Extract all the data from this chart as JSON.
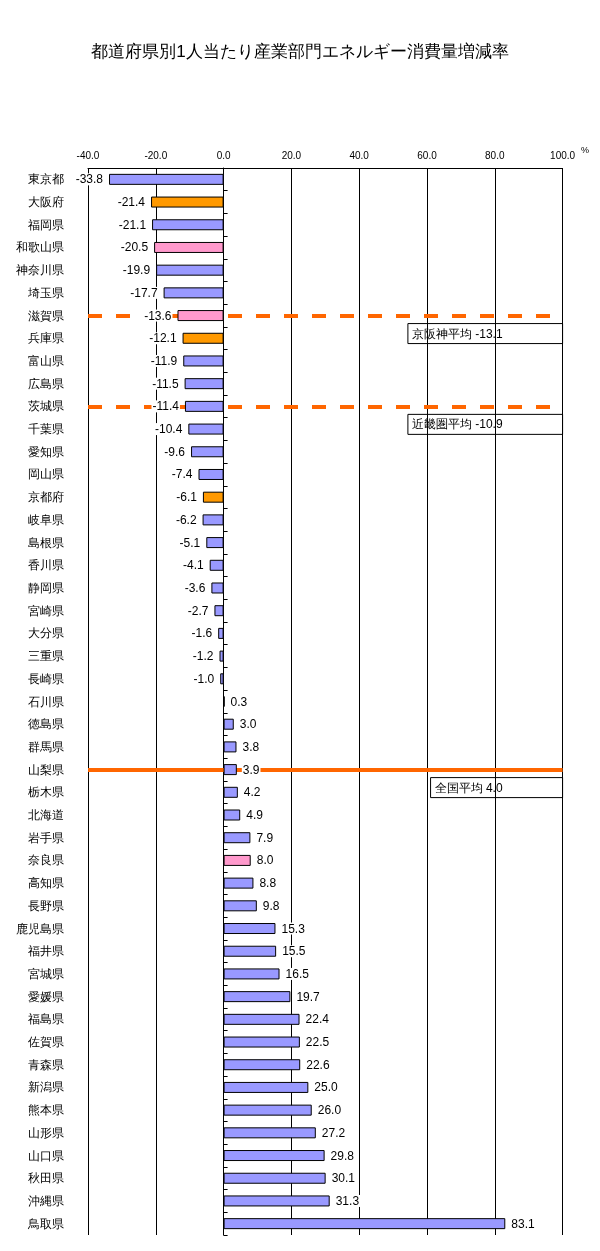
{
  "chart_data": {
    "type": "bar",
    "orientation": "horizontal",
    "title": "都道府県別1人当たり産業部門エネルギー消費量増減率",
    "xlabel": "%",
    "categories": [
      "東京都",
      "大阪府",
      "福岡県",
      "和歌山県",
      "神奈川県",
      "埼玉県",
      "滋賀県",
      "兵庫県",
      "富山県",
      "広島県",
      "茨城県",
      "千葉県",
      "愛知県",
      "岡山県",
      "京都府",
      "岐阜県",
      "島根県",
      "香川県",
      "静岡県",
      "宮崎県",
      "大分県",
      "三重県",
      "長崎県",
      "石川県",
      "徳島県",
      "群馬県",
      "山梨県",
      "栃木県",
      "北海道",
      "岩手県",
      "奈良県",
      "高知県",
      "長野県",
      "鹿児島県",
      "福井県",
      "宮城県",
      "愛媛県",
      "福島県",
      "佐賀県",
      "青森県",
      "新潟県",
      "熊本県",
      "山形県",
      "山口県",
      "秋田県",
      "沖縄県",
      "鳥取県"
    ],
    "values": [
      -33.8,
      -21.4,
      -21.1,
      -20.5,
      -19.9,
      -17.7,
      -13.6,
      -12.1,
      -11.9,
      -11.5,
      -11.4,
      -10.4,
      -9.6,
      -7.4,
      -6.1,
      -6.2,
      -5.1,
      -4.1,
      -3.6,
      -2.7,
      -1.6,
      -1.2,
      -1.0,
      0.3,
      3.0,
      3.8,
      3.9,
      4.2,
      4.9,
      7.9,
      8.0,
      8.8,
      9.8,
      15.3,
      15.5,
      16.5,
      19.7,
      22.4,
      22.5,
      22.6,
      25.0,
      26.0,
      27.2,
      29.8,
      30.1,
      31.3,
      83.1
    ],
    "colors": [
      "#9999ff",
      "#ff9900",
      "#9999ff",
      "#ff99cc",
      "#9999ff",
      "#9999ff",
      "#ff99cc",
      "#ff9900",
      "#9999ff",
      "#9999ff",
      "#9999ff",
      "#9999ff",
      "#9999ff",
      "#9999ff",
      "#ff9900",
      "#9999ff",
      "#9999ff",
      "#9999ff",
      "#9999ff",
      "#9999ff",
      "#9999ff",
      "#9999ff",
      "#9999ff",
      "#9999ff",
      "#9999ff",
      "#9999ff",
      "#9999ff",
      "#9999ff",
      "#9999ff",
      "#9999ff",
      "#ff99cc",
      "#9999ff",
      "#9999ff",
      "#9999ff",
      "#9999ff",
      "#9999ff",
      "#9999ff",
      "#9999ff",
      "#9999ff",
      "#9999ff",
      "#9999ff",
      "#9999ff",
      "#9999ff",
      "#9999ff",
      "#9999ff",
      "#9999ff",
      "#9999ff"
    ],
    "data_labels": true,
    "value_labels": [
      "-33.8",
      "-21.4",
      "-21.1",
      "-20.5",
      "-19.9",
      "-17.7",
      "-13.6",
      "-12.1",
      "-11.9",
      "-11.5",
      "-11.4",
      "-10.4",
      "-9.6",
      "-7.4",
      "-6.1",
      "-6.2",
      "-5.1",
      "-4.1",
      "-3.6",
      "-2.7",
      "-1.6",
      "-1.2",
      "-1.0",
      "0.3",
      "3.0",
      "3.8",
      "3.9",
      "4.2",
      "4.9",
      "7.9",
      "8.0",
      "8.8",
      "9.8",
      "15.3",
      "15.5",
      "16.5",
      "19.7",
      "22.4",
      "22.5",
      "22.6",
      "25.0",
      "26.0",
      "27.2",
      "29.8",
      "30.1",
      "31.3",
      "83.1"
    ],
    "xlim": [
      -40,
      100
    ],
    "xticks": [
      {
        "value": -40,
        "label": "-40.0"
      },
      {
        "value": -20,
        "label": "-20.0"
      },
      {
        "value": 0,
        "label": "0.0"
      },
      {
        "value": 20,
        "label": "20.0"
      },
      {
        "value": 40,
        "label": "40.0"
      },
      {
        "value": 60,
        "label": "60.0"
      },
      {
        "value": 80,
        "label": "80.0"
      },
      {
        "value": 100,
        "label": "100.0"
      }
    ],
    "grid": "x",
    "ref_lines": [
      {
        "axis": "y",
        "value": "滋賀県",
        "label": "京阪神平均 -13.1",
        "color": "#ff6600",
        "line_style": "dashed"
      },
      {
        "axis": "y",
        "value": "茨城県",
        "label": "近畿圏平均 -10.9",
        "color": "#ff6600",
        "line_style": "dashed"
      },
      {
        "axis": "y",
        "value": "山梨県",
        "label": "全国平均 4.0",
        "color": "#ff6600",
        "line_style": "solid"
      }
    ]
  }
}
